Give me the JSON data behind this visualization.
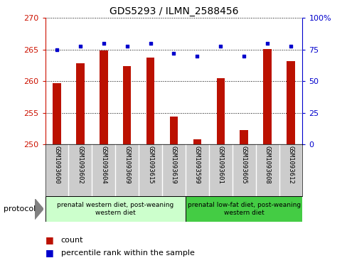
{
  "title": "GDS5293 / ILMN_2588456",
  "samples": [
    "GSM1093600",
    "GSM1093602",
    "GSM1093604",
    "GSM1093609",
    "GSM1093615",
    "GSM1093619",
    "GSM1093599",
    "GSM1093601",
    "GSM1093605",
    "GSM1093608",
    "GSM1093612"
  ],
  "counts": [
    259.7,
    262.8,
    264.9,
    262.4,
    263.8,
    254.4,
    250.8,
    260.5,
    252.3,
    265.1,
    263.2
  ],
  "percentiles": [
    75,
    78,
    80,
    78,
    80,
    72,
    70,
    78,
    70,
    80,
    78
  ],
  "ylim_left": [
    250,
    270
  ],
  "ylim_right": [
    0,
    100
  ],
  "yticks_left": [
    250,
    255,
    260,
    265,
    270
  ],
  "yticks_right": [
    0,
    25,
    50,
    75,
    100
  ],
  "bar_color": "#bb1100",
  "scatter_color": "#0000cc",
  "group1_label": "prenatal western diet, post-weaning\nwestern diet",
  "group2_label": "prenatal low-fat diet, post-weaning\nwestern diet",
  "group1_count": 6,
  "group2_count": 5,
  "group1_color": "#ccffcc",
  "group2_color": "#44cc44",
  "sample_bg_color": "#cccccc",
  "legend_count_label": "count",
  "legend_pct_label": "percentile rank within the sample",
  "protocol_label": "protocol"
}
